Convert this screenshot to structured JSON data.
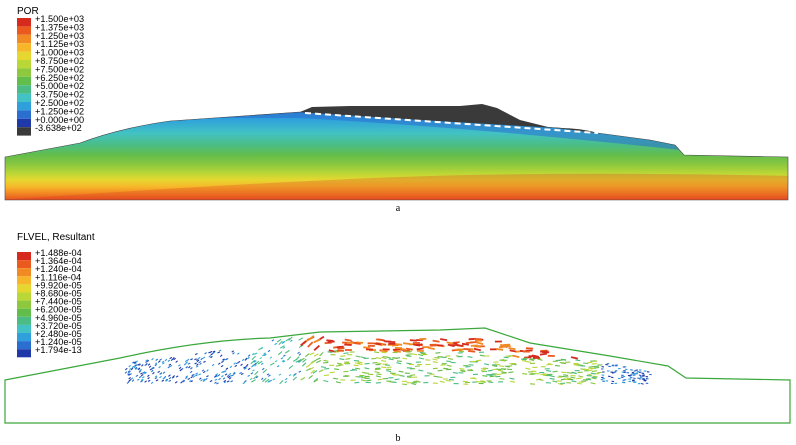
{
  "panel_a": {
    "caption": "a",
    "legend": {
      "title": "POR",
      "labels": [
        "+1.500e+03",
        "+1.375e+03",
        "+1.250e+03",
        "+1.125e+03",
        "+1.000e+03",
        "+8.750e+02",
        "+7.500e+02",
        "+6.250e+02",
        "+5.000e+02",
        "+3.750e+02",
        "+2.500e+02",
        "+1.250e+02",
        "+0.000e+00",
        "-3.638e+02"
      ],
      "colors": [
        "#d62a1e",
        "#ea5a1f",
        "#f28a24",
        "#f7b62a",
        "#e6d730",
        "#b9d737",
        "#8dc83e",
        "#63bd4b",
        "#4bbd84",
        "#42c2c4",
        "#2fa0dc",
        "#2a6fd0",
        "#1f3aa8",
        "#3a3a3a"
      ]
    }
  },
  "panel_b": {
    "caption": "b",
    "legend": {
      "title": "FLVEL, Resultant",
      "labels": [
        "+1.488e-04",
        "+1.364e-04",
        "+1.240e-04",
        "+1.116e-04",
        "+9.920e-05",
        "+8.680e-05",
        "+7.440e-05",
        "+6.200e-05",
        "+4.960e-05",
        "+3.720e-05",
        "+2.480e-05",
        "+1.240e-05",
        "+1.794e-13"
      ],
      "colors": [
        "#d62a1e",
        "#ea5a1f",
        "#f28a24",
        "#f7b62a",
        "#e6d730",
        "#b9d737",
        "#8dc83e",
        "#63bd4b",
        "#4bbd84",
        "#42c2c4",
        "#2fa0dc",
        "#2a6fd0",
        "#1f3aa8"
      ]
    }
  }
}
